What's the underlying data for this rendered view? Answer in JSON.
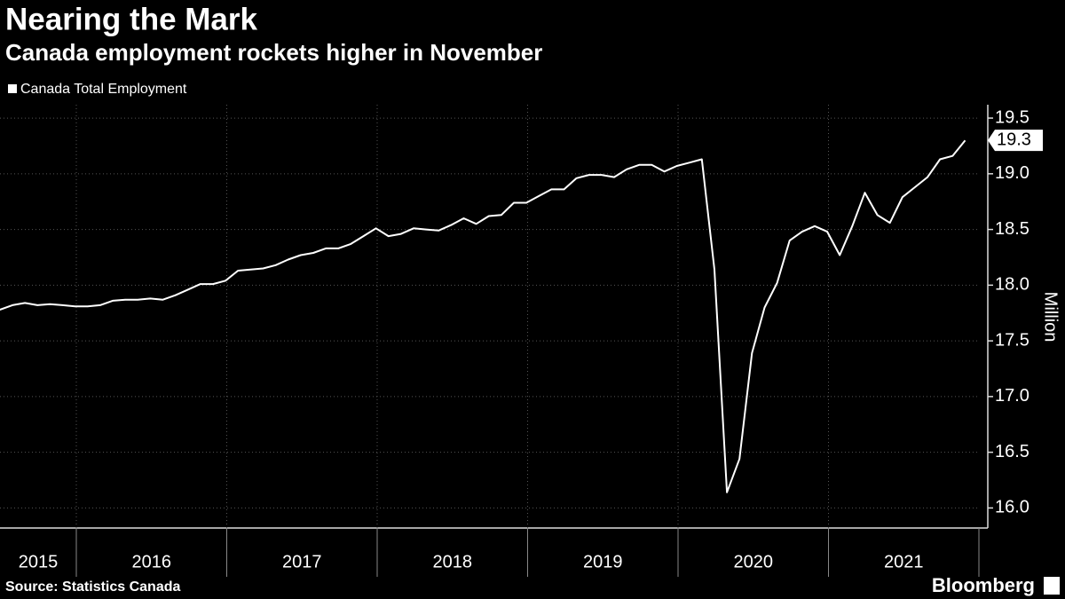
{
  "chart_data": {
    "type": "line",
    "title": "Nearing the Mark",
    "subtitle": "Canada employment rockets higher in November",
    "y_label": "Million",
    "source": "Source: Statistics Canada",
    "brand": "Bloomberg",
    "x": [
      "2015-06",
      "2015-07",
      "2015-08",
      "2015-09",
      "2015-10",
      "2015-11",
      "2015-12",
      "2016-01",
      "2016-02",
      "2016-03",
      "2016-04",
      "2016-05",
      "2016-06",
      "2016-07",
      "2016-08",
      "2016-09",
      "2016-10",
      "2016-11",
      "2016-12",
      "2017-01",
      "2017-02",
      "2017-03",
      "2017-04",
      "2017-05",
      "2017-06",
      "2017-07",
      "2017-08",
      "2017-09",
      "2017-10",
      "2017-11",
      "2017-12",
      "2018-01",
      "2018-02",
      "2018-03",
      "2018-04",
      "2018-05",
      "2018-06",
      "2018-07",
      "2018-08",
      "2018-09",
      "2018-10",
      "2018-11",
      "2018-12",
      "2019-01",
      "2019-02",
      "2019-03",
      "2019-04",
      "2019-05",
      "2019-06",
      "2019-07",
      "2019-08",
      "2019-09",
      "2019-10",
      "2019-11",
      "2019-12",
      "2020-01",
      "2020-02",
      "2020-03",
      "2020-04",
      "2020-05",
      "2020-06",
      "2020-07",
      "2020-08",
      "2020-09",
      "2020-10",
      "2020-11",
      "2020-12",
      "2021-01",
      "2021-02",
      "2021-03",
      "2021-04",
      "2021-05",
      "2021-06",
      "2021-07",
      "2021-08",
      "2021-09",
      "2021-10",
      "2021-11"
    ],
    "series": [
      {
        "name": "Canada Total Employment",
        "color": "#ffffff",
        "values": [
          17.78,
          17.82,
          17.84,
          17.82,
          17.83,
          17.82,
          17.81,
          17.81,
          17.82,
          17.86,
          17.87,
          17.87,
          17.88,
          17.87,
          17.91,
          17.96,
          18.01,
          18.01,
          18.04,
          18.13,
          18.14,
          18.15,
          18.18,
          18.23,
          18.27,
          18.29,
          18.33,
          18.33,
          18.37,
          18.44,
          18.51,
          18.44,
          18.46,
          18.51,
          18.5,
          18.49,
          18.54,
          18.6,
          18.55,
          18.62,
          18.63,
          18.74,
          18.74,
          18.8,
          18.86,
          18.86,
          18.96,
          18.99,
          18.99,
          18.97,
          19.04,
          19.08,
          19.08,
          19.02,
          19.07,
          19.1,
          19.13,
          18.14,
          16.14,
          16.44,
          17.39,
          17.8,
          18.02,
          18.4,
          18.48,
          18.53,
          18.48,
          18.27,
          18.53,
          18.83,
          18.63,
          18.56,
          18.79,
          18.88,
          18.97,
          19.13,
          19.16,
          19.3
        ]
      }
    ],
    "year_labels": [
      2015,
      2016,
      2017,
      2018,
      2019,
      2020,
      2021
    ],
    "ylim": [
      15.82,
      19.62
    ],
    "yticks": [
      {
        "value": 16,
        "label": "16.0"
      },
      16.5,
      {
        "value": 17,
        "label": "17.0"
      },
      17.5,
      {
        "value": 18,
        "label": "18.0"
      },
      18.5,
      {
        "value": 19,
        "label": "19.0"
      },
      19.5
    ],
    "grid": true
  }
}
